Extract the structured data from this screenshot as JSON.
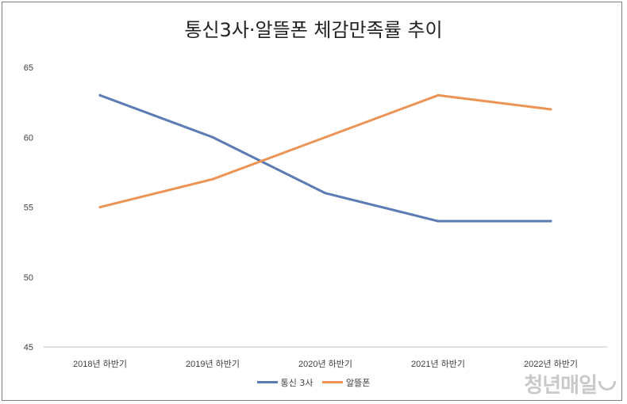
{
  "chart_data": {
    "type": "line",
    "title": "통신3사·알뜰폰 체감만족률 추이",
    "categories": [
      "2018년 하반기",
      "2019년 하반기",
      "2020년 하반기",
      "2021년 하반기",
      "2022년 하반기"
    ],
    "series": [
      {
        "name": "통신 3사",
        "values": [
          63,
          60,
          56,
          54,
          54
        ],
        "color": "#5b7bb5"
      },
      {
        "name": "알뜰폰",
        "values": [
          55,
          57,
          60,
          63,
          62
        ],
        "color": "#ed9454"
      }
    ],
    "ylim": [
      45,
      65
    ],
    "yticks": [
      "45",
      "50",
      "55",
      "60",
      "65"
    ],
    "grid": false,
    "legend_position": "bottom"
  },
  "watermark": {
    "text": "청년매일"
  }
}
